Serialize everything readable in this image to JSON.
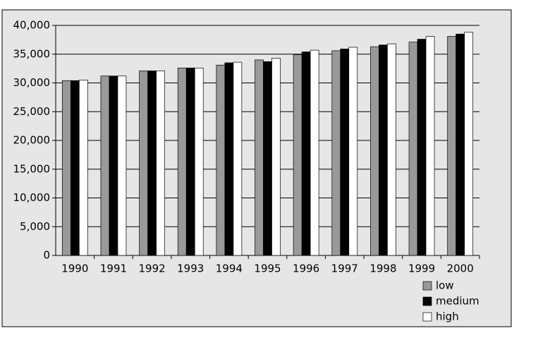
{
  "chart_data": {
    "type": "bar",
    "categories": [
      "1990",
      "1991",
      "1992",
      "1993",
      "1994",
      "1995",
      "1996",
      "1997",
      "1998",
      "1999",
      "2000"
    ],
    "series": [
      {
        "name": "low",
        "color": "#999999",
        "values": [
          30400,
          31200,
          32100,
          32600,
          33100,
          34000,
          34900,
          35600,
          36300,
          37100,
          38100
        ]
      },
      {
        "name": "medium",
        "color": "#000000",
        "values": [
          30400,
          31200,
          32100,
          32600,
          33500,
          33700,
          35400,
          35900,
          36600,
          37600,
          38500
        ]
      },
      {
        "name": "high",
        "color": "#ffffff",
        "values": [
          30500,
          31200,
          32100,
          32600,
          33600,
          34300,
          35700,
          36200,
          36800,
          38100,
          38800
        ]
      }
    ],
    "ylim": [
      0,
      40000
    ],
    "yticks": [
      0,
      {
        "value": 5000,
        "label": "5,000"
      },
      {
        "value": 10000,
        "label": "10,000"
      },
      {
        "value": 15000,
        "label": "15,000"
      },
      {
        "value": 20000,
        "label": "20,000"
      },
      {
        "value": 25000,
        "label": "25,000"
      },
      {
        "value": 30000,
        "label": "30,000"
      },
      {
        "value": 35000,
        "label": "35,000"
      },
      {
        "value": 40000,
        "label": "40,000"
      }
    ],
    "grid": true,
    "legend": "bottom-right"
  }
}
